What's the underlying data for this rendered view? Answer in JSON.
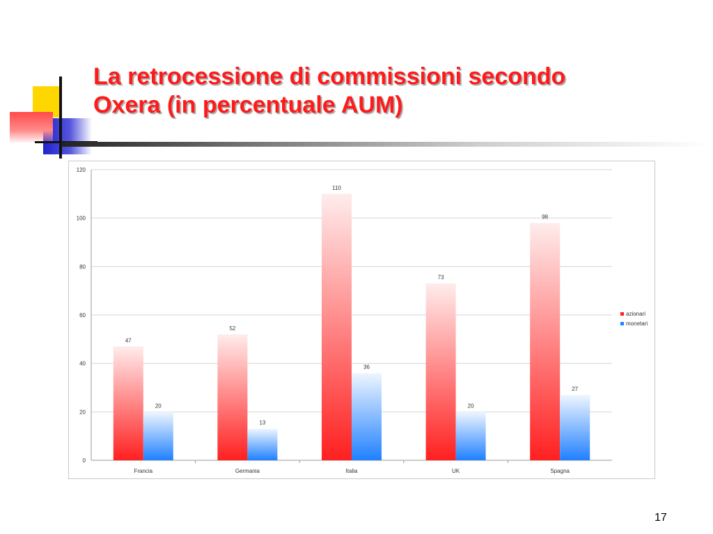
{
  "title": {
    "line1": "La retrocessione di commissioni secondo",
    "line2": "Oxera (in percentuale AUM)"
  },
  "page_number": "17",
  "colors": {
    "title": "#ff1a1a",
    "azionari": "#ff2020",
    "monetari": "#2080ff"
  },
  "chart_data": {
    "type": "bar",
    "categories": [
      "Francia",
      "Germania",
      "Italia",
      "UK",
      "Spagna"
    ],
    "series": [
      {
        "name": "azionari",
        "values": [
          47,
          52,
          110,
          73,
          98
        ],
        "color": "#ff2020"
      },
      {
        "name": "monetari",
        "values": [
          20,
          13,
          36,
          20,
          27
        ],
        "color": "#2080ff"
      }
    ],
    "ylim": [
      0,
      120
    ],
    "yticks": [
      0,
      20,
      40,
      60,
      80,
      100,
      120
    ],
    "grid": true,
    "legend": "right"
  }
}
